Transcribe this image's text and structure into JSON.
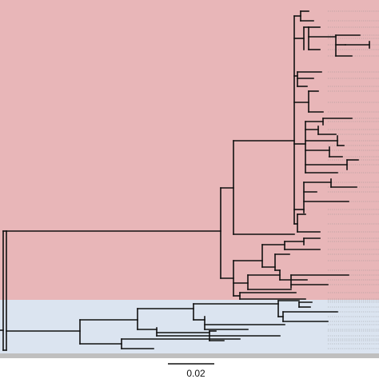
{
  "figure": {
    "clade_colors": {
      "upper_clade": "#e8b6b8",
      "lower_clade": "#dbe4f0",
      "bottom_strip": "#bfbfbf"
    },
    "branch_color": "#111111",
    "tip_guide_color": "#8a8a8a"
  },
  "scale_bar": {
    "label": "0.02"
  }
}
